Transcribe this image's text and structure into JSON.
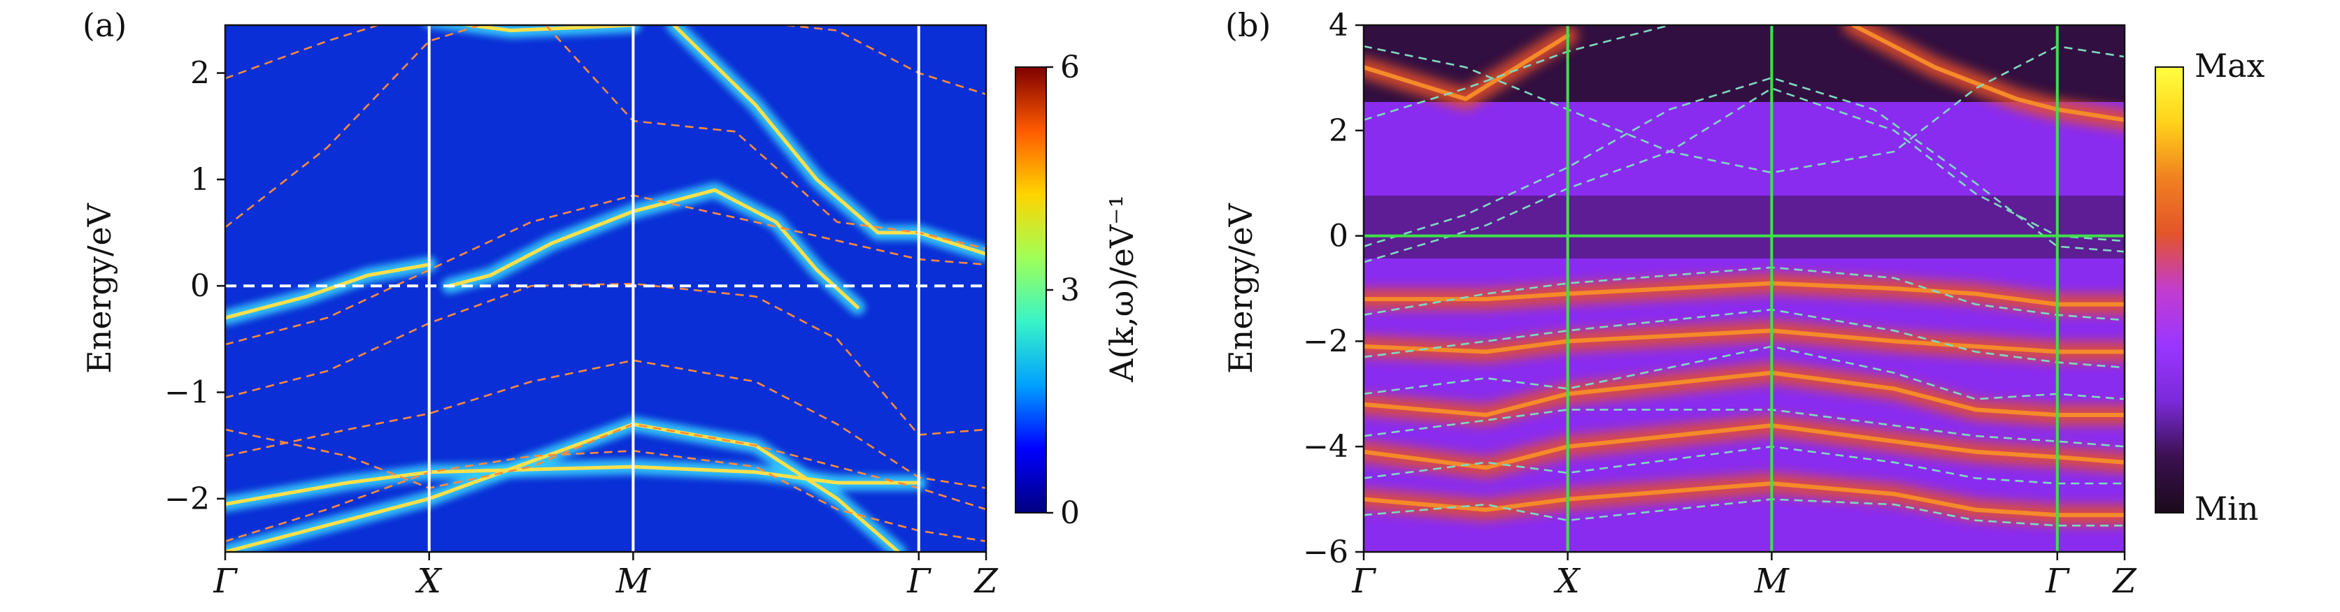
{
  "chart_data": [
    {
      "type": "heatmap",
      "panel_tag": "(a)",
      "ylabel": "Energy/eV",
      "ylim": [
        -2.5,
        2.45
      ],
      "ytick_values": [
        2,
        1,
        0,
        -1,
        -2
      ],
      "ytick_labels": [
        "2",
        "1",
        "0",
        "−1",
        "−2"
      ],
      "kpoint_labels": [
        "Γ",
        "X",
        "M",
        "Γ",
        "Z"
      ],
      "kpoint_positions": [
        0,
        1,
        2,
        3.4,
        3.73
      ],
      "fermi_level": 0,
      "colorbar": {
        "label": "A(k,ω)/eV⁻¹",
        "range": [
          0,
          6
        ],
        "tick_values": [
          6,
          3,
          0
        ],
        "tick_labels": [
          "6",
          "3",
          "0"
        ],
        "colormap": [
          "#00007f",
          "#0000ff",
          "#00a0ff",
          "#38f4c8",
          "#a0ff58",
          "#ffd400",
          "#ff5a00",
          "#7f0000"
        ]
      },
      "background_color": "#0a2fd6",
      "series": [
        {
          "kind": "dft-dashed",
          "points": [
            [
              0,
              -0.55
            ],
            [
              0.5,
              -0.3
            ],
            [
              1,
              0.15
            ],
            [
              1.5,
              0.6
            ],
            [
              2,
              0.85
            ],
            [
              2.6,
              0.6
            ],
            [
              3.4,
              0.25
            ],
            [
              3.73,
              0.2
            ]
          ]
        },
        {
          "kind": "dft-dashed",
          "points": [
            [
              0,
              -1.05
            ],
            [
              0.5,
              -0.8
            ],
            [
              1,
              -0.35
            ],
            [
              1.5,
              0.0
            ],
            [
              2,
              0.02
            ],
            [
              2.6,
              -0.1
            ],
            [
              3.0,
              -0.5
            ],
            [
              3.4,
              -1.4
            ],
            [
              3.73,
              -1.35
            ]
          ]
        },
        {
          "kind": "dft-dashed",
          "points": [
            [
              0,
              1.95
            ],
            [
              0.5,
              2.3
            ],
            [
              1,
              2.6
            ],
            [
              2,
              2.6
            ],
            [
              3.0,
              2.4
            ],
            [
              3.4,
              2.0
            ],
            [
              3.73,
              1.8
            ]
          ]
        },
        {
          "kind": "dft-dashed",
          "points": [
            [
              0,
              0.55
            ],
            [
              0.5,
              1.3
            ],
            [
              1,
              2.3
            ],
            [
              1.5,
              2.6
            ],
            [
              2,
              1.55
            ],
            [
              2.5,
              1.45
            ],
            [
              3.0,
              0.6
            ],
            [
              3.4,
              0.5
            ],
            [
              3.73,
              0.35
            ]
          ]
        },
        {
          "kind": "dft-dashed",
          "points": [
            [
              0,
              -1.35
            ],
            [
              0.6,
              -1.6
            ],
            [
              1,
              -1.9
            ],
            [
              1.5,
              -1.7
            ],
            [
              2,
              -1.3
            ],
            [
              2.6,
              -1.5
            ],
            [
              3.4,
              -1.9
            ],
            [
              3.73,
              -2.1
            ]
          ]
        },
        {
          "kind": "dft-dashed",
          "points": [
            [
              0,
              -1.6
            ],
            [
              0.6,
              -1.35
            ],
            [
              1,
              -1.2
            ],
            [
              1.5,
              -0.9
            ],
            [
              2,
              -0.7
            ],
            [
              2.6,
              -0.9
            ],
            [
              3.0,
              -1.3
            ],
            [
              3.4,
              -1.8
            ],
            [
              3.73,
              -1.9
            ]
          ]
        },
        {
          "kind": "dft-dashed",
          "points": [
            [
              0,
              -2.4
            ],
            [
              0.5,
              -2.1
            ],
            [
              1,
              -1.75
            ],
            [
              1.5,
              -1.6
            ],
            [
              2,
              -1.55
            ],
            [
              2.6,
              -1.7
            ],
            [
              3.0,
              -2.1
            ],
            [
              3.4,
              -2.3
            ],
            [
              3.73,
              -2.4
            ]
          ]
        },
        {
          "kind": "spectral-bright",
          "points": [
            [
              0,
              -0.3
            ],
            [
              0.4,
              -0.1
            ],
            [
              0.7,
              0.1
            ],
            [
              1,
              0.2
            ]
          ]
        },
        {
          "kind": "spectral-bright",
          "points": [
            [
              1.1,
              0.0
            ],
            [
              1.3,
              0.1
            ],
            [
              1.6,
              0.4
            ],
            [
              2,
              0.7
            ],
            [
              2.4,
              0.9
            ],
            [
              2.7,
              0.6
            ],
            [
              2.9,
              0.15
            ],
            [
              3.1,
              -0.2
            ]
          ]
        },
        {
          "kind": "spectral-bright",
          "points": [
            [
              0,
              -2.05
            ],
            [
              0.6,
              -1.85
            ],
            [
              1,
              -1.75
            ],
            [
              2,
              -1.7
            ],
            [
              2.6,
              -1.75
            ],
            [
              3.0,
              -1.85
            ],
            [
              3.4,
              -1.85
            ]
          ]
        },
        {
          "kind": "spectral-bright",
          "points": [
            [
              0,
              -2.5
            ],
            [
              0.4,
              -2.3
            ],
            [
              1,
              -2.0
            ],
            [
              2,
              -1.3
            ],
            [
              2.6,
              -1.5
            ],
            [
              3.0,
              -2.0
            ],
            [
              3.3,
              -2.5
            ]
          ]
        },
        {
          "kind": "spectral-bright",
          "points": [
            [
              1,
              2.5
            ],
            [
              1.4,
              2.4
            ],
            [
              2,
              2.45
            ]
          ]
        },
        {
          "kind": "spectral-bright",
          "points": [
            [
              2.2,
              2.45
            ],
            [
              2.6,
              1.7
            ],
            [
              2.9,
              1.0
            ],
            [
              3.2,
              0.5
            ],
            [
              3.4,
              0.5
            ],
            [
              3.73,
              0.3
            ]
          ]
        }
      ]
    },
    {
      "type": "heatmap",
      "panel_tag": "(b)",
      "ylabel": "Energy/eV",
      "ylim": [
        -6,
        4
      ],
      "ytick_values": [
        4,
        2,
        0,
        -2,
        -4,
        -6
      ],
      "ytick_labels": [
        "4",
        "2",
        "0",
        "−2",
        "−4",
        "−6"
      ],
      "kpoint_labels": [
        "Γ",
        "X",
        "M",
        "Γ",
        "Z"
      ],
      "kpoint_positions": [
        0,
        1,
        2,
        3.4,
        3.73
      ],
      "fermi_level": 0,
      "colorbar": {
        "label_top": "Max",
        "label_bottom": "Min",
        "colormap": [
          "#1a0a1a",
          "#3a1050",
          "#7a2ad8",
          "#9a36ff",
          "#c23cd0",
          "#e3542a",
          "#f08020",
          "#ffd21a",
          "#ffff40"
        ]
      },
      "background_color": "#8a2cf0",
      "series": [
        {
          "kind": "dft-dashed",
          "points": [
            [
              0,
              -0.2
            ],
            [
              0.5,
              0.4
            ],
            [
              1,
              1.3
            ],
            [
              1.5,
              2.4
            ],
            [
              2,
              3.0
            ],
            [
              2.5,
              2.4
            ],
            [
              3.0,
              1.0
            ],
            [
              3.4,
              -0.2
            ],
            [
              3.73,
              -0.3
            ]
          ]
        },
        {
          "kind": "dft-dashed",
          "points": [
            [
              0,
              -0.5
            ],
            [
              0.6,
              0.2
            ],
            [
              1,
              0.9
            ],
            [
              1.5,
              1.6
            ],
            [
              2,
              2.8
            ],
            [
              2.6,
              2.0
            ],
            [
              3.0,
              0.8
            ],
            [
              3.4,
              0.0
            ],
            [
              3.73,
              -0.1
            ]
          ]
        },
        {
          "kind": "dft-dashed",
          "points": [
            [
              0,
              3.6
            ],
            [
              0.5,
              3.2
            ],
            [
              1,
              2.4
            ],
            [
              1.5,
              1.6
            ],
            [
              2,
              1.2
            ],
            [
              2.6,
              1.6
            ],
            [
              3.0,
              2.8
            ],
            [
              3.4,
              3.6
            ],
            [
              3.73,
              3.4
            ]
          ]
        },
        {
          "kind": "dft-dashed",
          "points": [
            [
              0,
              2.2
            ],
            [
              0.5,
              2.8
            ],
            [
              1,
              3.5
            ],
            [
              1.5,
              4.0
            ]
          ]
        },
        {
          "kind": "dft-dashed",
          "points": [
            [
              0,
              -1.5
            ],
            [
              0.6,
              -1.1
            ],
            [
              1,
              -0.9
            ],
            [
              2,
              -0.6
            ],
            [
              2.6,
              -0.8
            ],
            [
              3.0,
              -1.3
            ],
            [
              3.4,
              -1.5
            ],
            [
              3.73,
              -1.6
            ]
          ]
        },
        {
          "kind": "dft-dashed",
          "points": [
            [
              0,
              -2.3
            ],
            [
              0.6,
              -2.0
            ],
            [
              1,
              -1.8
            ],
            [
              2,
              -1.4
            ],
            [
              2.6,
              -1.8
            ],
            [
              3.0,
              -2.2
            ],
            [
              3.4,
              -2.4
            ],
            [
              3.73,
              -2.5
            ]
          ]
        },
        {
          "kind": "dft-dashed",
          "points": [
            [
              0,
              -3.0
            ],
            [
              0.6,
              -2.7
            ],
            [
              1,
              -2.9
            ],
            [
              2,
              -2.1
            ],
            [
              2.6,
              -2.6
            ],
            [
              3.0,
              -3.1
            ],
            [
              3.4,
              -3.0
            ],
            [
              3.73,
              -3.1
            ]
          ]
        },
        {
          "kind": "dft-dashed",
          "points": [
            [
              0,
              -3.8
            ],
            [
              0.6,
              -3.5
            ],
            [
              1,
              -3.3
            ],
            [
              2,
              -3.3
            ],
            [
              2.6,
              -3.6
            ],
            [
              3.0,
              -3.8
            ],
            [
              3.4,
              -3.9
            ],
            [
              3.73,
              -4.0
            ]
          ]
        },
        {
          "kind": "dft-dashed",
          "points": [
            [
              0,
              -4.6
            ],
            [
              0.6,
              -4.3
            ],
            [
              1,
              -4.5
            ],
            [
              2,
              -4.0
            ],
            [
              2.6,
              -4.3
            ],
            [
              3.0,
              -4.6
            ],
            [
              3.4,
              -4.7
            ],
            [
              3.73,
              -4.7
            ]
          ]
        },
        {
          "kind": "dft-dashed",
          "points": [
            [
              0,
              -5.3
            ],
            [
              0.6,
              -5.1
            ],
            [
              1,
              -5.4
            ],
            [
              2,
              -5.0
            ],
            [
              2.6,
              -5.1
            ],
            [
              3.0,
              -5.4
            ],
            [
              3.4,
              -5.5
            ],
            [
              3.73,
              -5.5
            ]
          ]
        },
        {
          "kind": "spectral-bright",
          "points": [
            [
              0,
              -1.2
            ],
            [
              0.6,
              -1.2
            ],
            [
              1,
              -1.1
            ],
            [
              2,
              -0.9
            ],
            [
              2.6,
              -1.0
            ],
            [
              3.0,
              -1.1
            ],
            [
              3.4,
              -1.3
            ],
            [
              3.73,
              -1.3
            ]
          ]
        },
        {
          "kind": "spectral-bright",
          "points": [
            [
              0,
              -2.1
            ],
            [
              0.6,
              -2.2
            ],
            [
              1,
              -2.0
            ],
            [
              2,
              -1.8
            ],
            [
              2.6,
              -2.0
            ],
            [
              3.0,
              -2.1
            ],
            [
              3.4,
              -2.2
            ],
            [
              3.73,
              -2.2
            ]
          ]
        },
        {
          "kind": "spectral-bright",
          "points": [
            [
              0,
              -3.2
            ],
            [
              0.6,
              -3.4
            ],
            [
              1,
              -3.0
            ],
            [
              2,
              -2.6
            ],
            [
              2.6,
              -2.9
            ],
            [
              3.0,
              -3.3
            ],
            [
              3.4,
              -3.4
            ],
            [
              3.73,
              -3.4
            ]
          ]
        },
        {
          "kind": "spectral-bright",
          "points": [
            [
              0,
              -4.1
            ],
            [
              0.6,
              -4.4
            ],
            [
              1,
              -4.0
            ],
            [
              2,
              -3.6
            ],
            [
              2.6,
              -3.9
            ],
            [
              3.0,
              -4.1
            ],
            [
              3.4,
              -4.2
            ],
            [
              3.73,
              -4.3
            ]
          ]
        },
        {
          "kind": "spectral-bright",
          "points": [
            [
              0,
              -5.0
            ],
            [
              0.6,
              -5.2
            ],
            [
              1,
              -5.0
            ],
            [
              2,
              -4.7
            ],
            [
              2.6,
              -4.9
            ],
            [
              3.0,
              -5.2
            ],
            [
              3.4,
              -5.3
            ],
            [
              3.73,
              -5.3
            ]
          ]
        },
        {
          "kind": "spectral-bright",
          "points": [
            [
              0,
              3.2
            ],
            [
              0.5,
              2.6
            ],
            [
              1,
              3.8
            ]
          ]
        },
        {
          "kind": "spectral-bright",
          "points": [
            [
              2.4,
              4.0
            ],
            [
              2.8,
              3.2
            ],
            [
              3.2,
              2.6
            ],
            [
              3.4,
              2.4
            ],
            [
              3.73,
              2.2
            ]
          ]
        }
      ]
    }
  ]
}
